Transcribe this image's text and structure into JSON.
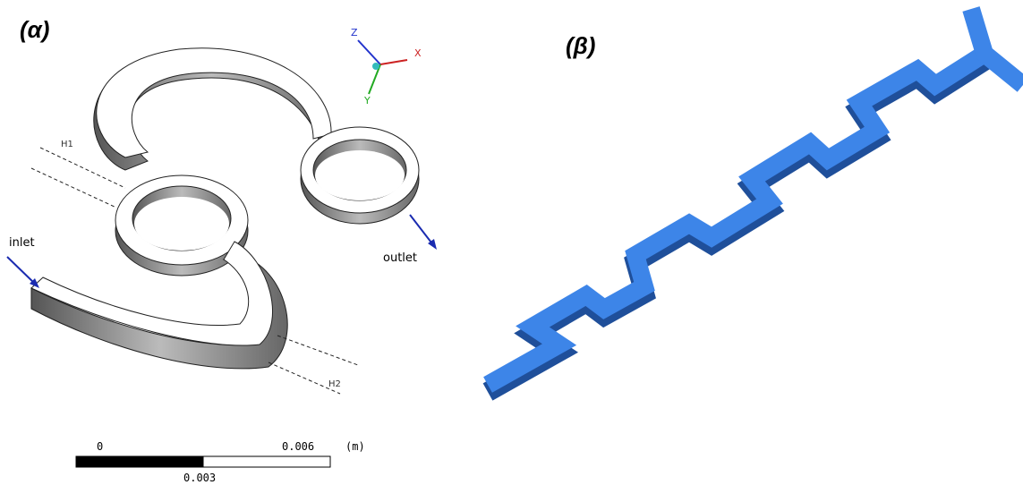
{
  "panel_a": {
    "label": "(α)",
    "axes": {
      "z": "Z",
      "x": "X",
      "y": "Y"
    },
    "dimensions": {
      "h1": "H1",
      "h2": "H2"
    },
    "inlet": "inlet",
    "outlet": "outlet",
    "scale_bar": {
      "start": "0",
      "end": "0.006",
      "unit": "(m)",
      "middle": "0.003"
    }
  },
  "panel_b": {
    "label": "(β)"
  }
}
